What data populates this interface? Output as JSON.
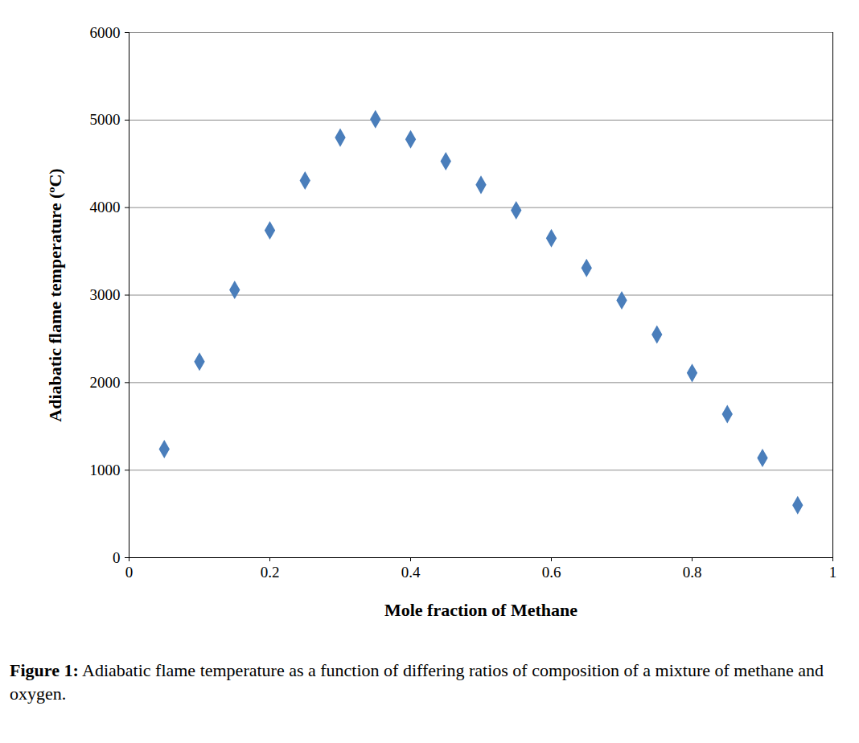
{
  "chart_data": {
    "type": "scatter",
    "title": "Figure 1:  Adiabatic flame temperature as a function of differing ratios of composition of a mixture of methane and oxygen.",
    "x_label": "Mole fraction of Methane",
    "y_label": "Adiabatic flame temperature (ºC)",
    "x": [
      0.05,
      0.1,
      0.15,
      0.2,
      0.25,
      0.3,
      0.35,
      0.4,
      0.45,
      0.5,
      0.55,
      0.6,
      0.65,
      0.7,
      0.75,
      0.8,
      0.85,
      0.9,
      0.95
    ],
    "values": [
      1240,
      2240,
      3060,
      3740,
      4310,
      4800,
      5010,
      4780,
      4530,
      4260,
      3970,
      3650,
      3310,
      2940,
      2550,
      2110,
      1640,
      1140,
      600
    ],
    "color": "#4a7ebb",
    "marker": "diamond",
    "xlim": [
      0,
      1
    ],
    "xticks": [
      0,
      0.2,
      0.4,
      0.6,
      0.8,
      1
    ],
    "ylim": [
      0,
      6000
    ],
    "yticks": [
      0,
      1000,
      2000,
      3000,
      4000,
      5000,
      6000
    ],
    "grid": true
  }
}
